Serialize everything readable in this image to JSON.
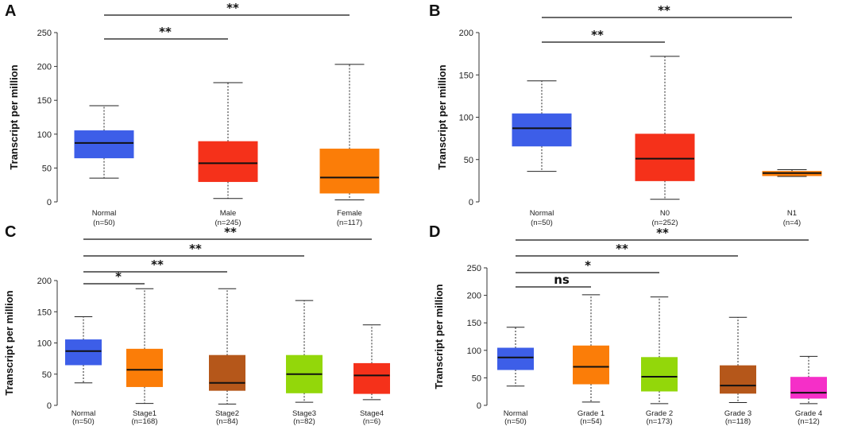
{
  "chart_data": [
    {
      "type": "boxplot",
      "panel": "A",
      "ylabel": "Transcript per million",
      "ylim": [
        0,
        250
      ],
      "yticks": [
        0,
        50,
        100,
        150,
        200,
        250
      ],
      "categories": [
        {
          "name": "Normal",
          "n": "(n=50)",
          "color": "#3d5ee8",
          "min": 35,
          "q1": 65,
          "median": 87,
          "q3": 105,
          "max": 142
        },
        {
          "name": "Male",
          "n": "(n=245)",
          "color": "#f5311a",
          "min": 5,
          "q1": 30,
          "median": 57,
          "q3": 89,
          "max": 176
        },
        {
          "name": "Female",
          "n": "(n=117)",
          "color": "#fb7d08",
          "min": 3,
          "q1": 13,
          "median": 36,
          "q3": 78,
          "max": 203
        }
      ],
      "significance": [
        {
          "from": 0,
          "to": 1,
          "label": "**"
        },
        {
          "from": 0,
          "to": 2,
          "label": "**"
        }
      ]
    },
    {
      "type": "boxplot",
      "panel": "B",
      "ylabel": "Transcript per million",
      "ylim": [
        0,
        200
      ],
      "yticks": [
        0,
        50,
        100,
        150,
        200
      ],
      "categories": [
        {
          "name": "Normal",
          "n": "(n=50)",
          "color": "#3d5ee8",
          "min": 36,
          "q1": 66,
          "median": 87,
          "q3": 104,
          "max": 143
        },
        {
          "name": "N0",
          "n": "(n=252)",
          "color": "#f5311a",
          "min": 3,
          "q1": 25,
          "median": 51,
          "q3": 80,
          "max": 172
        },
        {
          "name": "N1",
          "n": "(n=4)",
          "color": "#fb7d08",
          "min": 30,
          "q1": 31,
          "median": 34,
          "q3": 36,
          "max": 38
        }
      ],
      "significance": [
        {
          "from": 0,
          "to": 1,
          "label": "**"
        },
        {
          "from": 0,
          "to": 2,
          "label": "**"
        }
      ]
    },
    {
      "type": "boxplot",
      "panel": "C",
      "ylabel": "Transcript per million",
      "ylim": [
        0,
        200
      ],
      "yticks": [
        0,
        50,
        100,
        150,
        200
      ],
      "categories": [
        {
          "name": "Normal",
          "n": "(n=50)",
          "color": "#3d5ee8",
          "min": 36,
          "q1": 65,
          "median": 87,
          "q3": 105,
          "max": 142
        },
        {
          "name": "Stage1",
          "n": "(n=168)",
          "color": "#fb7d08",
          "min": 3,
          "q1": 30,
          "median": 57,
          "q3": 90,
          "max": 187
        },
        {
          "name": "Stage2",
          "n": "(n=84)",
          "color": "#b5571a",
          "min": 2,
          "q1": 24,
          "median": 36,
          "q3": 80,
          "max": 187
        },
        {
          "name": "Stage3",
          "n": "(n=82)",
          "color": "#93d70a",
          "min": 5,
          "q1": 20,
          "median": 50,
          "q3": 80,
          "max": 168
        },
        {
          "name": "Stage4",
          "n": "(n=6)",
          "color": "#f5311a",
          "min": 9,
          "q1": 19,
          "median": 48,
          "q3": 67,
          "max": 129
        }
      ],
      "significance": [
        {
          "from": 0,
          "to": 1,
          "label": "*"
        },
        {
          "from": 0,
          "to": 2,
          "label": "**"
        },
        {
          "from": 0,
          "to": 3,
          "label": "**"
        },
        {
          "from": 0,
          "to": 4,
          "label": "**"
        }
      ]
    },
    {
      "type": "boxplot",
      "panel": "D",
      "ylabel": "Transcript per million",
      "ylim": [
        0,
        250
      ],
      "yticks": [
        0,
        50,
        100,
        150,
        200,
        250
      ],
      "categories": [
        {
          "name": "Normal",
          "n": "(n=50)",
          "color": "#3d5ee8",
          "min": 35,
          "q1": 65,
          "median": 87,
          "q3": 104,
          "max": 142
        },
        {
          "name": "Grade 1",
          "n": "(n=54)",
          "color": "#fb7d08",
          "min": 6,
          "q1": 39,
          "median": 70,
          "q3": 108,
          "max": 201
        },
        {
          "name": "Grade 2",
          "n": "(n=173)",
          "color": "#93d70a",
          "min": 3,
          "q1": 26,
          "median": 52,
          "q3": 87,
          "max": 197
        },
        {
          "name": "Grade 3",
          "n": "(n=118)",
          "color": "#b5571a",
          "min": 5,
          "q1": 22,
          "median": 36,
          "q3": 72,
          "max": 160
        },
        {
          "name": "Grade 4",
          "n": "(n=12)",
          "color": "#f52fc8",
          "min": 3,
          "q1": 13,
          "median": 23,
          "q3": 51,
          "max": 89
        }
      ],
      "significance": [
        {
          "from": 0,
          "to": 1,
          "label": "ns"
        },
        {
          "from": 0,
          "to": 2,
          "label": "*"
        },
        {
          "from": 0,
          "to": 3,
          "label": "**"
        },
        {
          "from": 0,
          "to": 4,
          "label": "**"
        }
      ]
    }
  ]
}
